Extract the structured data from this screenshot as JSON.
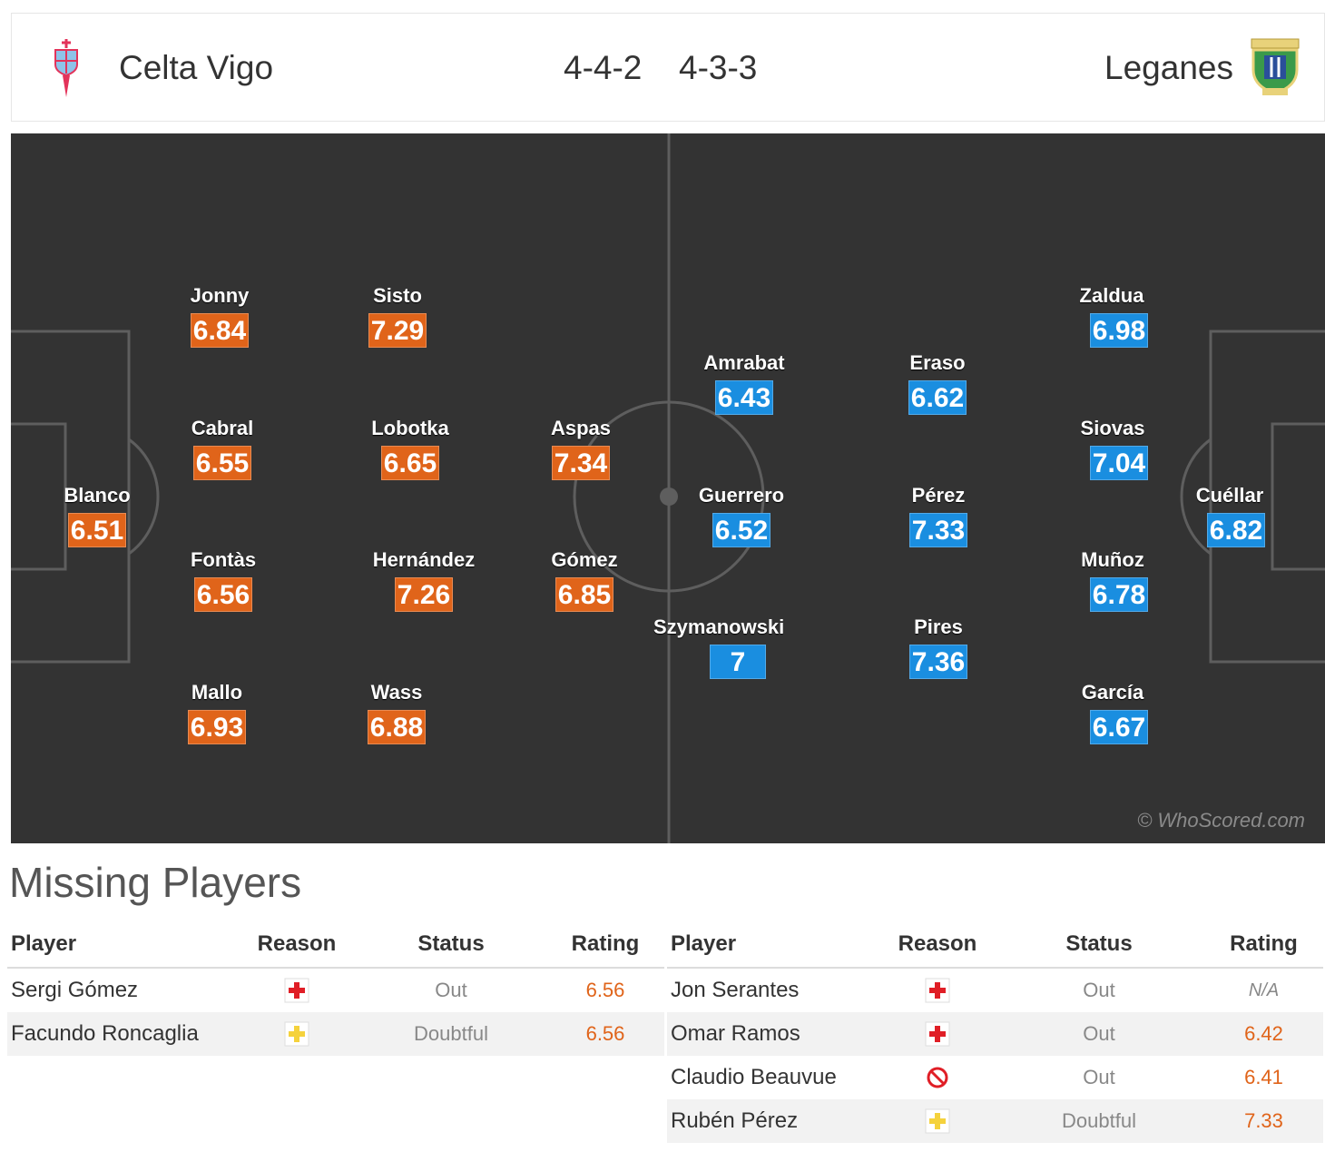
{
  "header": {
    "home_team": "Celta Vigo",
    "away_team": "Leganes",
    "home_formation": "4-4-2",
    "away_formation": "4-3-3",
    "home_logo_icon": "celta-vigo-crest-icon",
    "away_logo_icon": "leganes-crest-icon"
  },
  "pitch": {
    "watermark": "© WhoScored.com",
    "home_color": "#e0641a",
    "away_color": "#1a8ee0",
    "home_players": [
      {
        "name": "Blanco",
        "rating": "6.51"
      },
      {
        "name": "Jonny",
        "rating": "6.84"
      },
      {
        "name": "Cabral",
        "rating": "6.55"
      },
      {
        "name": "Fontàs",
        "rating": "6.56"
      },
      {
        "name": "Mallo",
        "rating": "6.93"
      },
      {
        "name": "Sisto",
        "rating": "7.29"
      },
      {
        "name": "Lobotka",
        "rating": "6.65"
      },
      {
        "name": "Hernández",
        "rating": "7.26"
      },
      {
        "name": "Wass",
        "rating": "6.88"
      },
      {
        "name": "Aspas",
        "rating": "7.34"
      },
      {
        "name": "Gómez",
        "rating": "6.85"
      }
    ],
    "away_players": [
      {
        "name": "Amrabat",
        "rating": "6.43"
      },
      {
        "name": "Guerrero",
        "rating": "6.52"
      },
      {
        "name": "Szymanowski",
        "rating": "7"
      },
      {
        "name": "Eraso",
        "rating": "6.62"
      },
      {
        "name": "Pérez",
        "rating": "7.33"
      },
      {
        "name": "Pires",
        "rating": "7.36"
      },
      {
        "name": "Zaldua",
        "rating": "6.98"
      },
      {
        "name": "Siovas",
        "rating": "7.04"
      },
      {
        "name": "Muñoz",
        "rating": "6.78"
      },
      {
        "name": "García",
        "rating": "6.67"
      },
      {
        "name": "Cuéllar",
        "rating": "6.82"
      }
    ]
  },
  "missing": {
    "title": "Missing Players",
    "columns": {
      "player": "Player",
      "reason": "Reason",
      "status": "Status",
      "rating": "Rating"
    },
    "home": [
      {
        "player": "Sergi Gómez",
        "reason_icon": "injury-cross-icon",
        "status": "Out",
        "rating": "6.56"
      },
      {
        "player": "Facundo Roncaglia",
        "reason_icon": "doubtful-cross-icon",
        "status": "Doubtful",
        "rating": "6.56"
      }
    ],
    "away": [
      {
        "player": "Jon Serantes",
        "reason_icon": "injury-cross-icon",
        "status": "Out",
        "rating": "N/A"
      },
      {
        "player": "Omar Ramos",
        "reason_icon": "injury-cross-icon",
        "status": "Out",
        "rating": "6.42"
      },
      {
        "player": "Claudio Beauvue",
        "reason_icon": "suspended-icon",
        "status": "Out",
        "rating": "6.41"
      },
      {
        "player": "Rubén Pérez",
        "reason_icon": "doubtful-cross-icon",
        "status": "Doubtful",
        "rating": "7.33"
      }
    ]
  }
}
